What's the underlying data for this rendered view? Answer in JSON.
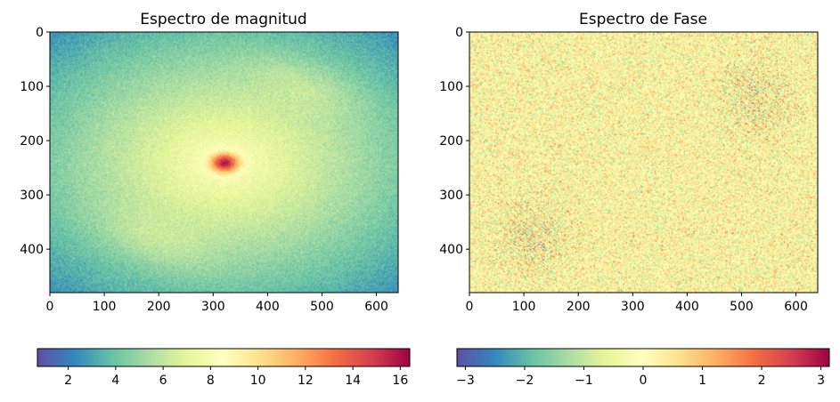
{
  "chart_data": [
    {
      "type": "heatmap",
      "title": "Espectro de magnitud",
      "xlabel": "",
      "ylabel": "",
      "xlim": [
        0,
        640
      ],
      "ylim": [
        480,
        0
      ],
      "image_size": [
        640,
        480
      ],
      "x_ticks": [
        0,
        100,
        200,
        300,
        400,
        500,
        600
      ],
      "y_ticks": [
        0,
        100,
        200,
        300,
        400
      ],
      "colormap": "Spectral_r",
      "colorbar": {
        "orientation": "horizontal",
        "range": [
          0.7,
          16.4
        ],
        "ticks": [
          2,
          4,
          6,
          8,
          10,
          12,
          14,
          16
        ]
      },
      "peak": {
        "x": 320,
        "y": 240,
        "value": 16.4
      }
    },
    {
      "type": "heatmap",
      "title": "Espectro de Fase",
      "xlabel": "",
      "ylabel": "",
      "xlim": [
        0,
        640
      ],
      "ylim": [
        480,
        0
      ],
      "image_size": [
        640,
        480
      ],
      "x_ticks": [
        0,
        100,
        200,
        300,
        400,
        500,
        600
      ],
      "y_ticks": [
        0,
        100,
        200,
        300,
        400
      ],
      "colormap": "Spectral_r",
      "colorbar": {
        "orientation": "horizontal",
        "range": [
          -3.14159,
          3.14159
        ],
        "ticks": [
          -3,
          -2,
          -1,
          0,
          1,
          2,
          3
        ],
        "tick_labels": [
          "−3",
          "−2",
          "−1",
          "0",
          "1",
          "2",
          "3"
        ]
      }
    }
  ]
}
